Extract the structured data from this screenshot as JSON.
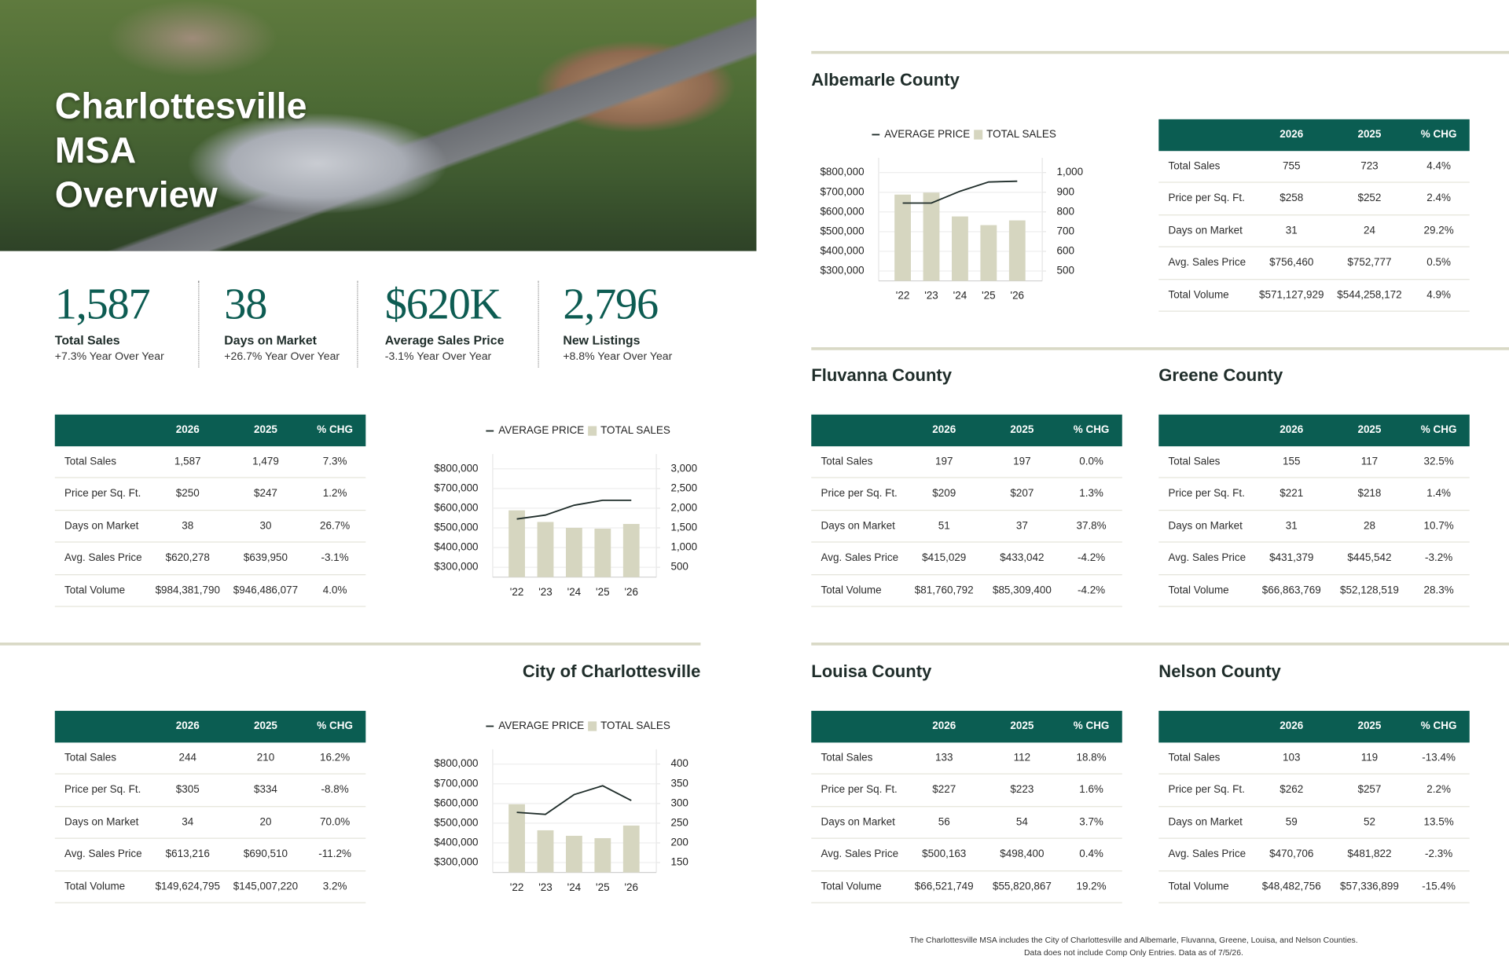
{
  "header": {
    "title_lines": [
      "Charlottesville",
      "MSA",
      "Overview"
    ]
  },
  "stats": [
    {
      "value": "1,587",
      "label": "Total Sales",
      "change": "+7.3% Year Over Year"
    },
    {
      "value": "38",
      "label": "Days on Market",
      "change": "+26.7% Year Over Year"
    },
    {
      "value": "$620K",
      "label": "Average Sales Price",
      "change": "-3.1% Year Over Year"
    },
    {
      "value": "2,796",
      "label": "New Listings",
      "change": "+8.8% Year Over Year"
    }
  ],
  "columns": [
    "2026",
    "2025",
    "% CHG"
  ],
  "sections": [
    {
      "table": {
        "rows": [
          [
            "Total Sales",
            "1,587",
            "1,479",
            "7.3%"
          ],
          [
            "Price per Sq. Ft.",
            "$250",
            "$247",
            "1.2%"
          ],
          [
            "Days on Market",
            "38",
            "30",
            "26.7%"
          ],
          [
            "Avg. Sales Price",
            "$620,278",
            "$639,950",
            "-3.1%"
          ],
          [
            "Total Volume",
            "$984,381,790",
            "$946,486,077",
            "4.0%"
          ]
        ]
      }
    },
    {
      "title": "City of Charlottesville",
      "table": {
        "rows": [
          [
            "Total Sales",
            "244",
            "210",
            "16.2%"
          ],
          [
            "Price per Sq. Ft.",
            "$305",
            "$334",
            "-8.8%"
          ],
          [
            "Days on Market",
            "34",
            "20",
            "70.0%"
          ],
          [
            "Avg. Sales Price",
            "$613,216",
            "$690,510",
            "-11.2%"
          ],
          [
            "Total Volume",
            "$149,624,795",
            "$145,007,220",
            "3.2%"
          ]
        ]
      }
    },
    {
      "title": "Albemarle County",
      "table": {
        "rows": [
          [
            "Total Sales",
            "755",
            "723",
            "4.4%"
          ],
          [
            "Price per Sq. Ft.",
            "$258",
            "$252",
            "2.4%"
          ],
          [
            "Days on Market",
            "31",
            "24",
            "29.2%"
          ],
          [
            "Avg. Sales Price",
            "$756,460",
            "$752,777",
            "0.5%"
          ],
          [
            "Total Volume",
            "$571,127,929",
            "$544,258,172",
            "4.9%"
          ]
        ]
      }
    },
    {
      "title": "Fluvanna County",
      "table": {
        "rows": [
          [
            "Total Sales",
            "197",
            "197",
            "0.0%"
          ],
          [
            "Price per Sq. Ft.",
            "$209",
            "$207",
            "1.3%"
          ],
          [
            "Days on Market",
            "51",
            "37",
            "37.8%"
          ],
          [
            "Avg. Sales Price",
            "$415,029",
            "$433,042",
            "-4.2%"
          ],
          [
            "Total Volume",
            "$81,760,792",
            "$85,309,400",
            "-4.2%"
          ]
        ]
      }
    },
    {
      "title": "Greene County",
      "table": {
        "rows": [
          [
            "Total Sales",
            "155",
            "117",
            "32.5%"
          ],
          [
            "Price per Sq. Ft.",
            "$221",
            "$218",
            "1.4%"
          ],
          [
            "Days on Market",
            "31",
            "28",
            "10.7%"
          ],
          [
            "Avg. Sales Price",
            "$431,379",
            "$445,542",
            "-3.2%"
          ],
          [
            "Total Volume",
            "$66,863,769",
            "$52,128,519",
            "28.3%"
          ]
        ]
      }
    },
    {
      "title": "Louisa County",
      "table": {
        "rows": [
          [
            "Total Sales",
            "133",
            "112",
            "18.8%"
          ],
          [
            "Price per Sq. Ft.",
            "$227",
            "$223",
            "1.6%"
          ],
          [
            "Days on Market",
            "56",
            "54",
            "3.7%"
          ],
          [
            "Avg. Sales Price",
            "$500,163",
            "$498,400",
            "0.4%"
          ],
          [
            "Total Volume",
            "$66,521,749",
            "$55,820,867",
            "19.2%"
          ]
        ]
      }
    },
    {
      "title": "Nelson County",
      "table": {
        "rows": [
          [
            "Total Sales",
            "103",
            "119",
            "-13.4%"
          ],
          [
            "Price per Sq. Ft.",
            "$262",
            "$257",
            "2.2%"
          ],
          [
            "Days on Market",
            "59",
            "52",
            "13.5%"
          ],
          [
            "Avg. Sales Price",
            "$470,706",
            "$481,822",
            "-2.3%"
          ],
          [
            "Total Volume",
            "$48,482,756",
            "$57,336,899",
            "-15.4%"
          ]
        ]
      }
    }
  ],
  "chart_data": [
    {
      "type": "combo",
      "categories": [
        "'22",
        "'23",
        "'24",
        "'25",
        "'26"
      ],
      "series": [
        {
          "name": "AVERAGE PRICE",
          "type": "line",
          "color": "#1f2d2a",
          "values": [
            545000,
            565000,
            615000,
            640000,
            640000
          ]
        },
        {
          "name": "TOTAL SALES",
          "type": "bar",
          "axis": "y2",
          "color": "#d6d6c0",
          "values": [
            1945,
            1650,
            1500,
            1480,
            1600
          ]
        }
      ],
      "ylim": [
        250000,
        875000
      ],
      "yticks": [
        {
          "value": 300000,
          "label": "$300,000"
        },
        {
          "value": 400000,
          "label": "$400,000"
        },
        {
          "value": 500000,
          "label": "$500,000"
        },
        {
          "value": 600000,
          "label": "$600,000"
        },
        {
          "value": 700000,
          "label": "$700,000"
        },
        {
          "value": 800000,
          "label": "$800,000"
        }
      ],
      "y2lim": [
        250,
        3375
      ],
      "y2ticks": [
        500,
        {
          "value": 1000,
          "label": "1,000"
        },
        {
          "value": 1500,
          "label": "1,500"
        },
        {
          "value": 2000,
          "label": "2,000"
        },
        {
          "value": 2500,
          "label": "2,500"
        },
        {
          "value": 3000,
          "label": "3,000"
        }
      ],
      "grid": true
    },
    {
      "type": "combo",
      "categories": [
        "'22",
        "'23",
        "'24",
        "'25",
        "'26"
      ],
      "series": [
        {
          "name": "AVERAGE PRICE",
          "type": "line",
          "color": "#1f2d2a",
          "values": [
            555000,
            545000,
            645000,
            690000,
            615000
          ]
        },
        {
          "name": "TOTAL SALES",
          "type": "bar",
          "axis": "y2",
          "color": "#d6d6c0",
          "values": [
            298,
            232,
            218,
            212,
            244
          ]
        }
      ],
      "ylim": [
        250000,
        875000
      ],
      "yticks": [
        {
          "value": 300000,
          "label": "$300,000"
        },
        {
          "value": 400000,
          "label": "$400,000"
        },
        {
          "value": 500000,
          "label": "$500,000"
        },
        {
          "value": 600000,
          "label": "$600,000"
        },
        {
          "value": 700000,
          "label": "$700,000"
        },
        {
          "value": 800000,
          "label": "$800,000"
        }
      ],
      "y2lim": [
        125,
        437.5
      ],
      "y2ticks": [
        150,
        200,
        250,
        300,
        350,
        400
      ],
      "grid": true
    },
    {
      "type": "combo",
      "categories": [
        "'22",
        "'23",
        "'24",
        "'25",
        "'26"
      ],
      "series": [
        {
          "name": "AVERAGE PRICE",
          "type": "line",
          "color": "#1f2d2a",
          "values": [
            645000,
            645000,
            705000,
            752000,
            756000
          ]
        },
        {
          "name": "TOTAL SALES",
          "type": "bar",
          "axis": "y2",
          "color": "#d6d6c0",
          "values": [
            888,
            898,
            777,
            733,
            757
          ]
        }
      ],
      "ylim": [
        250000,
        875000
      ],
      "yticks": [
        {
          "value": 300000,
          "label": "$300,000"
        },
        {
          "value": 400000,
          "label": "$400,000"
        },
        {
          "value": 500000,
          "label": "$500,000"
        },
        {
          "value": 600000,
          "label": "$600,000"
        },
        {
          "value": 700000,
          "label": "$700,000"
        },
        {
          "value": 800000,
          "label": "$800,000"
        }
      ],
      "y2lim": [
        450,
        1075
      ],
      "y2ticks": [
        500,
        600,
        700,
        800,
        900,
        {
          "value": 1000,
          "label": "1,000"
        }
      ],
      "grid": true
    }
  ],
  "footnote": [
    "The Charlottesville MSA includes the City of Charlottesville and Albemarle, Fluvanna, Greene, Louisa, and Nelson Counties.",
    "Data does not include Comp Only Entries. Data as of 7/5/26."
  ]
}
